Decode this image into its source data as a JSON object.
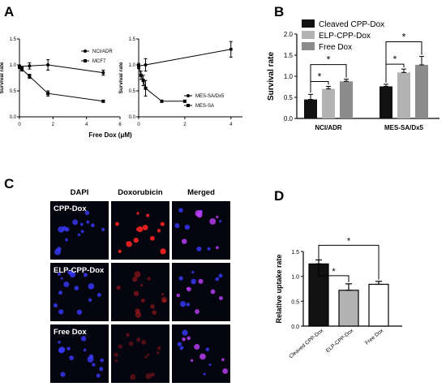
{
  "panel_labels": {
    "a": "A",
    "b": "B",
    "c": "C",
    "d": "D"
  },
  "colors": {
    "black": "#111111",
    "light_gray": "#b3b3b3",
    "mid_gray": "#8c8c8c",
    "dapi": "#3a3aff",
    "dox": "#e02020"
  },
  "chart_data": [
    {
      "id": "A1",
      "type": "line",
      "xlabel": "",
      "ylabel": "Survival rate",
      "xlim": [
        0,
        6
      ],
      "ylim": [
        0,
        1.5
      ],
      "xticks": [
        "0",
        "2",
        "4",
        "6"
      ],
      "yticks": [
        "0.0",
        "0.5",
        "1.0",
        "1.5"
      ],
      "legend": "top-right",
      "series": [
        {
          "name": "NCI/ADR",
          "marker": "circle",
          "x": [
            0,
            0.6,
            1.7,
            5
          ],
          "y": [
            0.97,
            0.98,
            1.0,
            0.85
          ],
          "err": [
            0.03,
            0.06,
            0.1,
            0.05
          ]
        },
        {
          "name": "MCF7",
          "marker": "square",
          "x": [
            0,
            0.15,
            0.6,
            1.7,
            5
          ],
          "y": [
            0.96,
            0.92,
            0.78,
            0.45,
            0.3
          ],
          "err": [
            0.03,
            0.04,
            0.04,
            0.05,
            0.02
          ]
        }
      ]
    },
    {
      "id": "A2",
      "type": "line",
      "xlabel": "Free Dox  (μM)",
      "ylabel": "Survival rate",
      "xlim": [
        0,
        4.5
      ],
      "ylim": [
        0,
        1.5
      ],
      "xticks": [
        "0",
        "2",
        "4"
      ],
      "yticks": [
        "0.0",
        "0.5",
        "1.0",
        "1.5"
      ],
      "legend": "bottom-right",
      "series": [
        {
          "name": "MES-SA/Dx5",
          "marker": "circle",
          "x": [
            0,
            0.3,
            4
          ],
          "y": [
            0.98,
            1.0,
            1.3
          ],
          "err": [
            0.05,
            0.12,
            0.15
          ]
        },
        {
          "name": "MES-SA",
          "marker": "square",
          "x": [
            0,
            0.1,
            0.2,
            0.3,
            1.0,
            2.0
          ],
          "y": [
            0.98,
            0.8,
            0.7,
            0.55,
            0.3,
            0.3
          ],
          "err": [
            0.03,
            0.08,
            0.1,
            0.15,
            0.02,
            0.02
          ]
        }
      ]
    },
    {
      "id": "B",
      "type": "bar",
      "ylabel": "Survival rate",
      "ylim": [
        0,
        2.0
      ],
      "yticks": [
        "0.0",
        "0.5",
        "1.0",
        "1.5",
        "2.0"
      ],
      "categories": [
        "NCI/ADR",
        "MES-SA/Dx5"
      ],
      "legend": "top-left",
      "series": [
        {
          "name": "Cleaved CPP-Dox",
          "color": "#111111",
          "values": [
            0.45,
            0.76
          ],
          "err": [
            0.12,
            0.05
          ]
        },
        {
          "name": "ELP-CPP-Dox",
          "color": "#b3b3b3",
          "values": [
            0.7,
            1.09
          ],
          "err": [
            0.06,
            0.08
          ]
        },
        {
          "name": "Free Dox",
          "color": "#8c8c8c",
          "values": [
            0.88,
            1.27
          ],
          "err": [
            0.05,
            0.2
          ]
        }
      ],
      "significance_marker": "*"
    },
    {
      "id": "D",
      "type": "bar",
      "ylabel": "Relative uptake rate",
      "ylim": [
        0,
        1.5
      ],
      "yticks": [
        "0.0",
        "0.5",
        "1.0",
        "1.5"
      ],
      "categories": [
        "Cleaved CPP-Dox",
        "ELP-CPP-Dox",
        "Free Dox"
      ],
      "values": [
        1.25,
        0.72,
        0.84
      ],
      "err": [
        0.08,
        0.13,
        0.06
      ],
      "colors": [
        "#111111",
        "#b3b3b3",
        "#ffffff"
      ],
      "significance_marker": "*"
    }
  ],
  "panel_c": {
    "column_headers": [
      "DAPI",
      "Doxorubicin",
      "Merged"
    ],
    "row_labels": [
      "CPP-Dox",
      "ELP-CPP-Dox",
      "Free Dox"
    ]
  }
}
